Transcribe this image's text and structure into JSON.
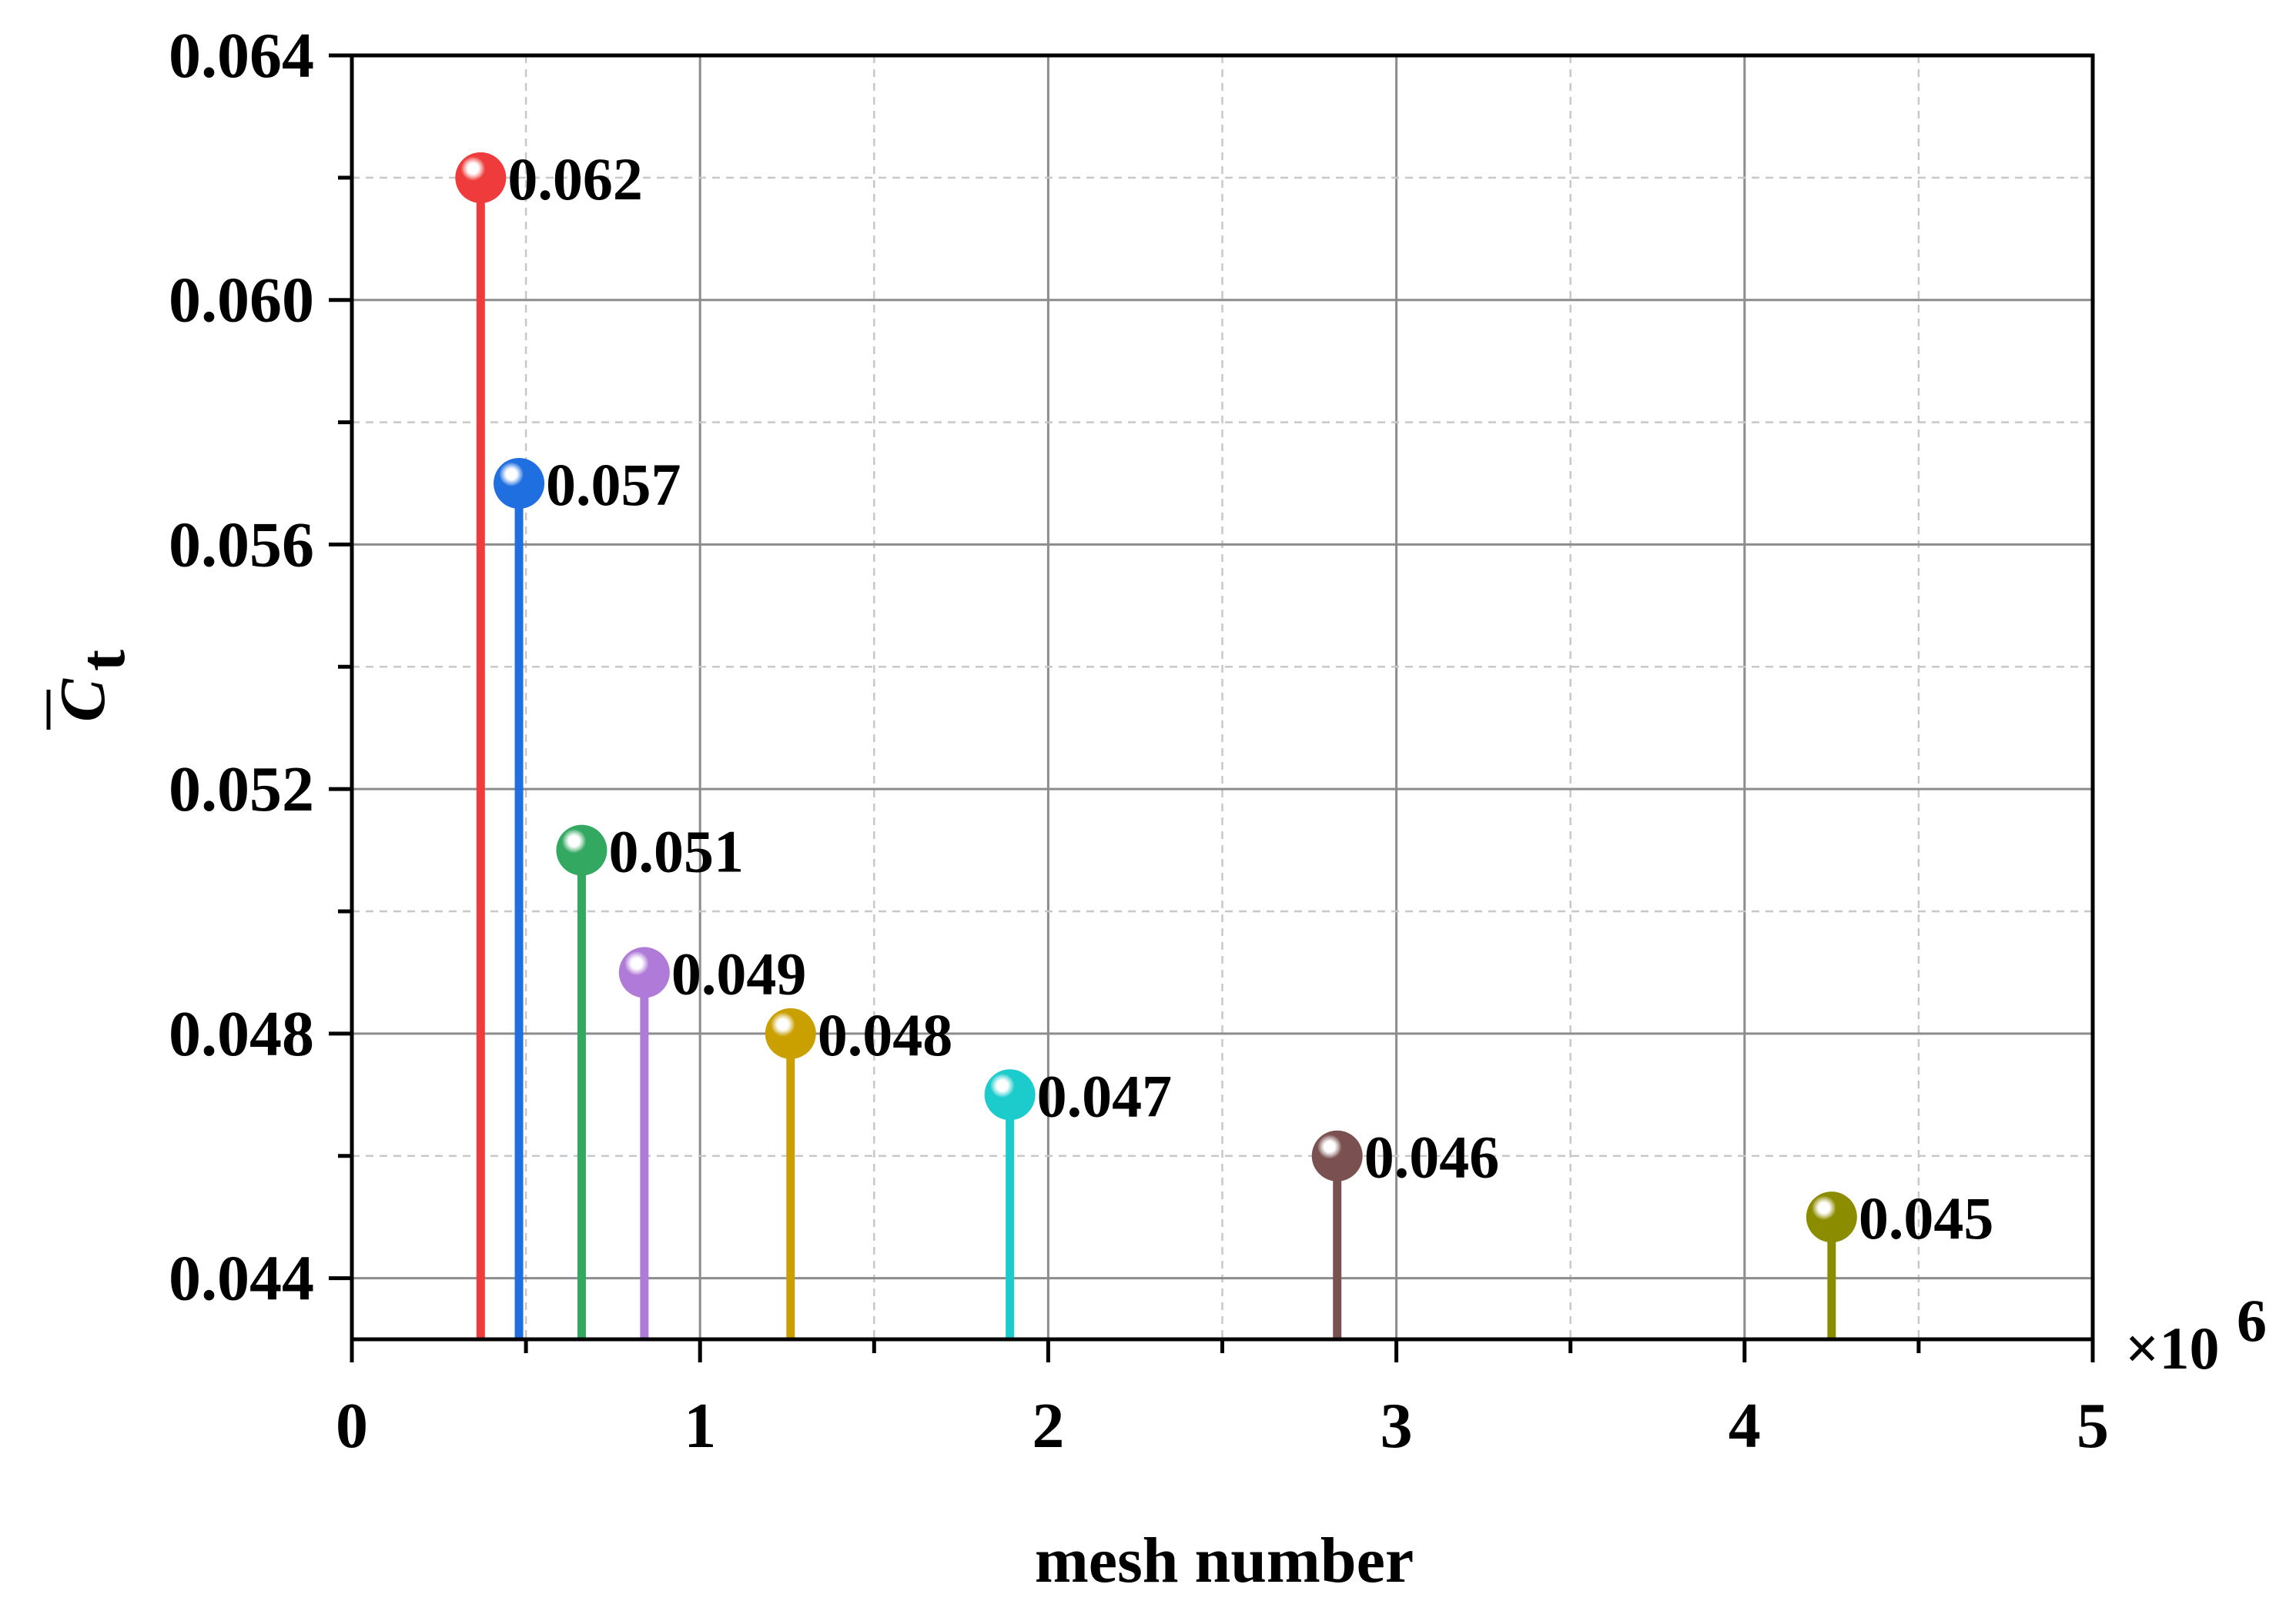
{
  "chart_data": {
    "type": "stem",
    "title": "",
    "xlabel": "mesh number",
    "ylabel": "C",
    "ylabel_subscript": "t",
    "x_multiplier_label": "×10",
    "x_multiplier_exponent": "6",
    "xlim": [
      0,
      5
    ],
    "ylim": [
      0.043,
      0.064
    ],
    "x_ticks": [
      0,
      1,
      2,
      3,
      4,
      5
    ],
    "x_tick_labels": [
      "0",
      "1",
      "2",
      "3",
      "4",
      "5"
    ],
    "y_ticks": [
      0.044,
      0.048,
      0.052,
      0.056,
      0.06,
      0.064
    ],
    "y_tick_labels": [
      "0.044",
      "0.048",
      "0.052",
      "0.056",
      "0.060",
      "0.064"
    ],
    "grid": true,
    "legend": "none",
    "points": [
      {
        "x": 0.37,
        "y": 0.062,
        "label": "0.062",
        "color": "#ef3b3b"
      },
      {
        "x": 0.48,
        "y": 0.057,
        "label": "0.057",
        "color": "#1f6fe0"
      },
      {
        "x": 0.66,
        "y": 0.051,
        "label": "0.051",
        "color": "#33a860"
      },
      {
        "x": 0.84,
        "y": 0.049,
        "label": "0.049",
        "color": "#b07ad8"
      },
      {
        "x": 1.26,
        "y": 0.048,
        "label": "0.048",
        "color": "#c9a000"
      },
      {
        "x": 1.89,
        "y": 0.047,
        "label": "0.047",
        "color": "#1ccccc"
      },
      {
        "x": 2.83,
        "y": 0.046,
        "label": "0.046",
        "color": "#7a5050"
      },
      {
        "x": 4.25,
        "y": 0.045,
        "label": "0.045",
        "color": "#8c8c00"
      }
    ]
  }
}
